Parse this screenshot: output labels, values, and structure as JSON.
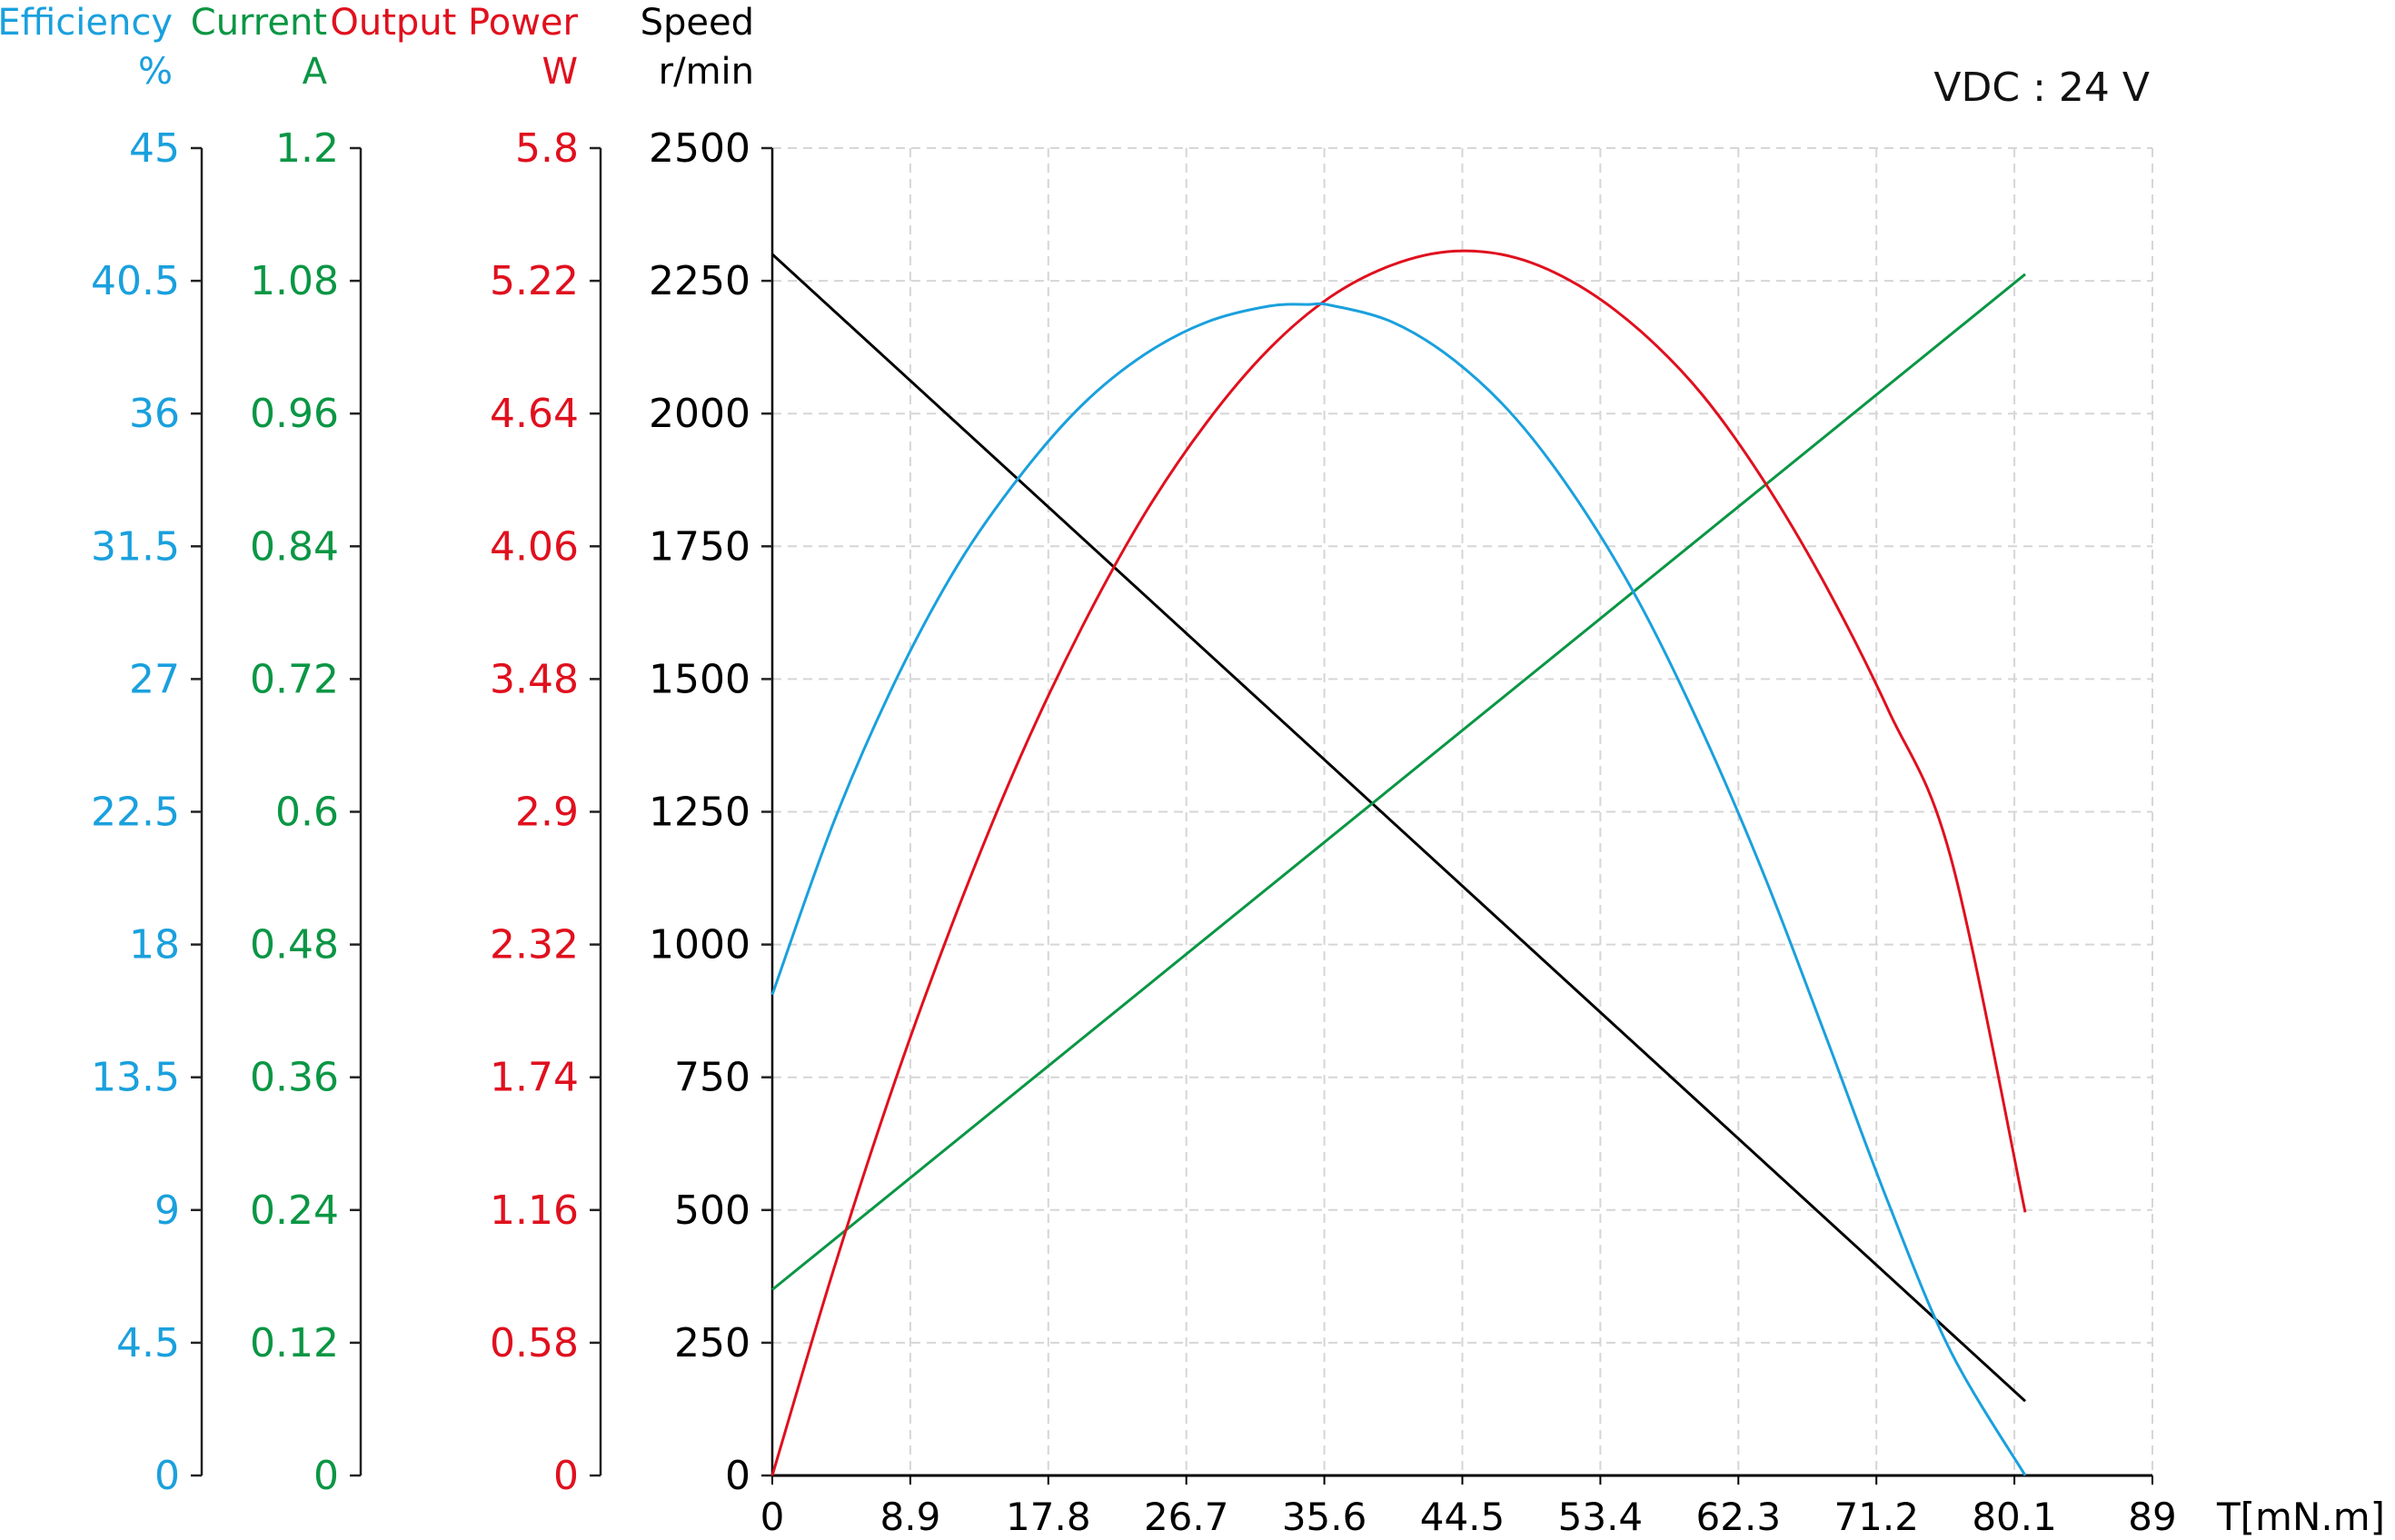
{
  "chart_data": {
    "type": "line",
    "annotation": "VDC : 24 V",
    "colors": {
      "efficiency": "#1aa0dd",
      "current": "#0a9644",
      "power": "#e0101e",
      "speed": "#000000",
      "grid": "#d6d6d6"
    },
    "x_axis": {
      "label": "T[mN.m]",
      "range": [
        0,
        89
      ],
      "ticks": [
        "0",
        "8.9",
        "17.8",
        "26.7",
        "35.6",
        "44.5",
        "53.4",
        "62.3",
        "71.2",
        "80.1",
        "89"
      ]
    },
    "y_axes": {
      "efficiency": {
        "title": "Efficiency",
        "unit": "%",
        "range": [
          0,
          45
        ],
        "ticks": [
          "0",
          "4.5",
          "9",
          "13.5",
          "18",
          "22.5",
          "27",
          "31.5",
          "36",
          "40.5",
          "45"
        ]
      },
      "current": {
        "title": "Current",
        "unit": "A",
        "range": [
          0,
          1.2
        ],
        "ticks": [
          "0",
          "0.12",
          "0.24",
          "0.36",
          "0.48",
          "0.6",
          "0.72",
          "0.84",
          "0.96",
          "1.08",
          "1.2"
        ]
      },
      "power": {
        "title": "Output Power",
        "unit": "W",
        "range": [
          0,
          5.8
        ],
        "ticks": [
          "0",
          "0.58",
          "1.16",
          "1.74",
          "2.32",
          "2.9",
          "3.48",
          "4.06",
          "4.64",
          "5.22",
          "5.8"
        ]
      },
      "speed": {
        "title": "Speed",
        "unit": "r/min",
        "range": [
          0,
          2500
        ],
        "ticks": [
          "0",
          "250",
          "500",
          "750",
          "1000",
          "1250",
          "1500",
          "1750",
          "2000",
          "2250",
          "2500"
        ]
      }
    },
    "series": [
      {
        "name": "Speed",
        "axis": "speed",
        "color_key": "speed",
        "x": [
          0,
          80.8
        ],
        "y": [
          2300,
          140
        ]
      },
      {
        "name": "Current",
        "axis": "current",
        "color_key": "current",
        "x": [
          0,
          80.8
        ],
        "y": [
          0.168,
          1.086
        ]
      },
      {
        "name": "Output Power",
        "axis": "power",
        "color_key": "power",
        "x": [
          0,
          4,
          8,
          12,
          16,
          20,
          24,
          28,
          32,
          36,
          40,
          44,
          48,
          52,
          56,
          60,
          64,
          68,
          72,
          76,
          80.8
        ],
        "y": [
          0,
          0.91,
          1.74,
          2.48,
          3.14,
          3.71,
          4.2,
          4.6,
          4.92,
          5.15,
          5.29,
          5.35,
          5.32,
          5.2,
          5.0,
          4.72,
          4.34,
          3.88,
          3.34,
          2.7,
          1.15
        ]
      },
      {
        "name": "Efficiency",
        "axis": "efficiency",
        "color_key": "efficiency",
        "x": [
          0,
          4,
          8,
          12,
          16,
          20,
          24,
          28,
          32,
          34.6,
          36,
          40,
          44,
          48,
          52,
          56,
          60,
          64,
          68,
          72,
          76,
          80.8
        ],
        "y": [
          16.3,
          22.2,
          27,
          30.9,
          33.9,
          36.3,
          38,
          39.1,
          39.64,
          39.7,
          39.67,
          39.1,
          37.8,
          35.8,
          33,
          29.5,
          25.2,
          20.3,
          14.8,
          9.2,
          4.2,
          0
        ]
      }
    ]
  }
}
